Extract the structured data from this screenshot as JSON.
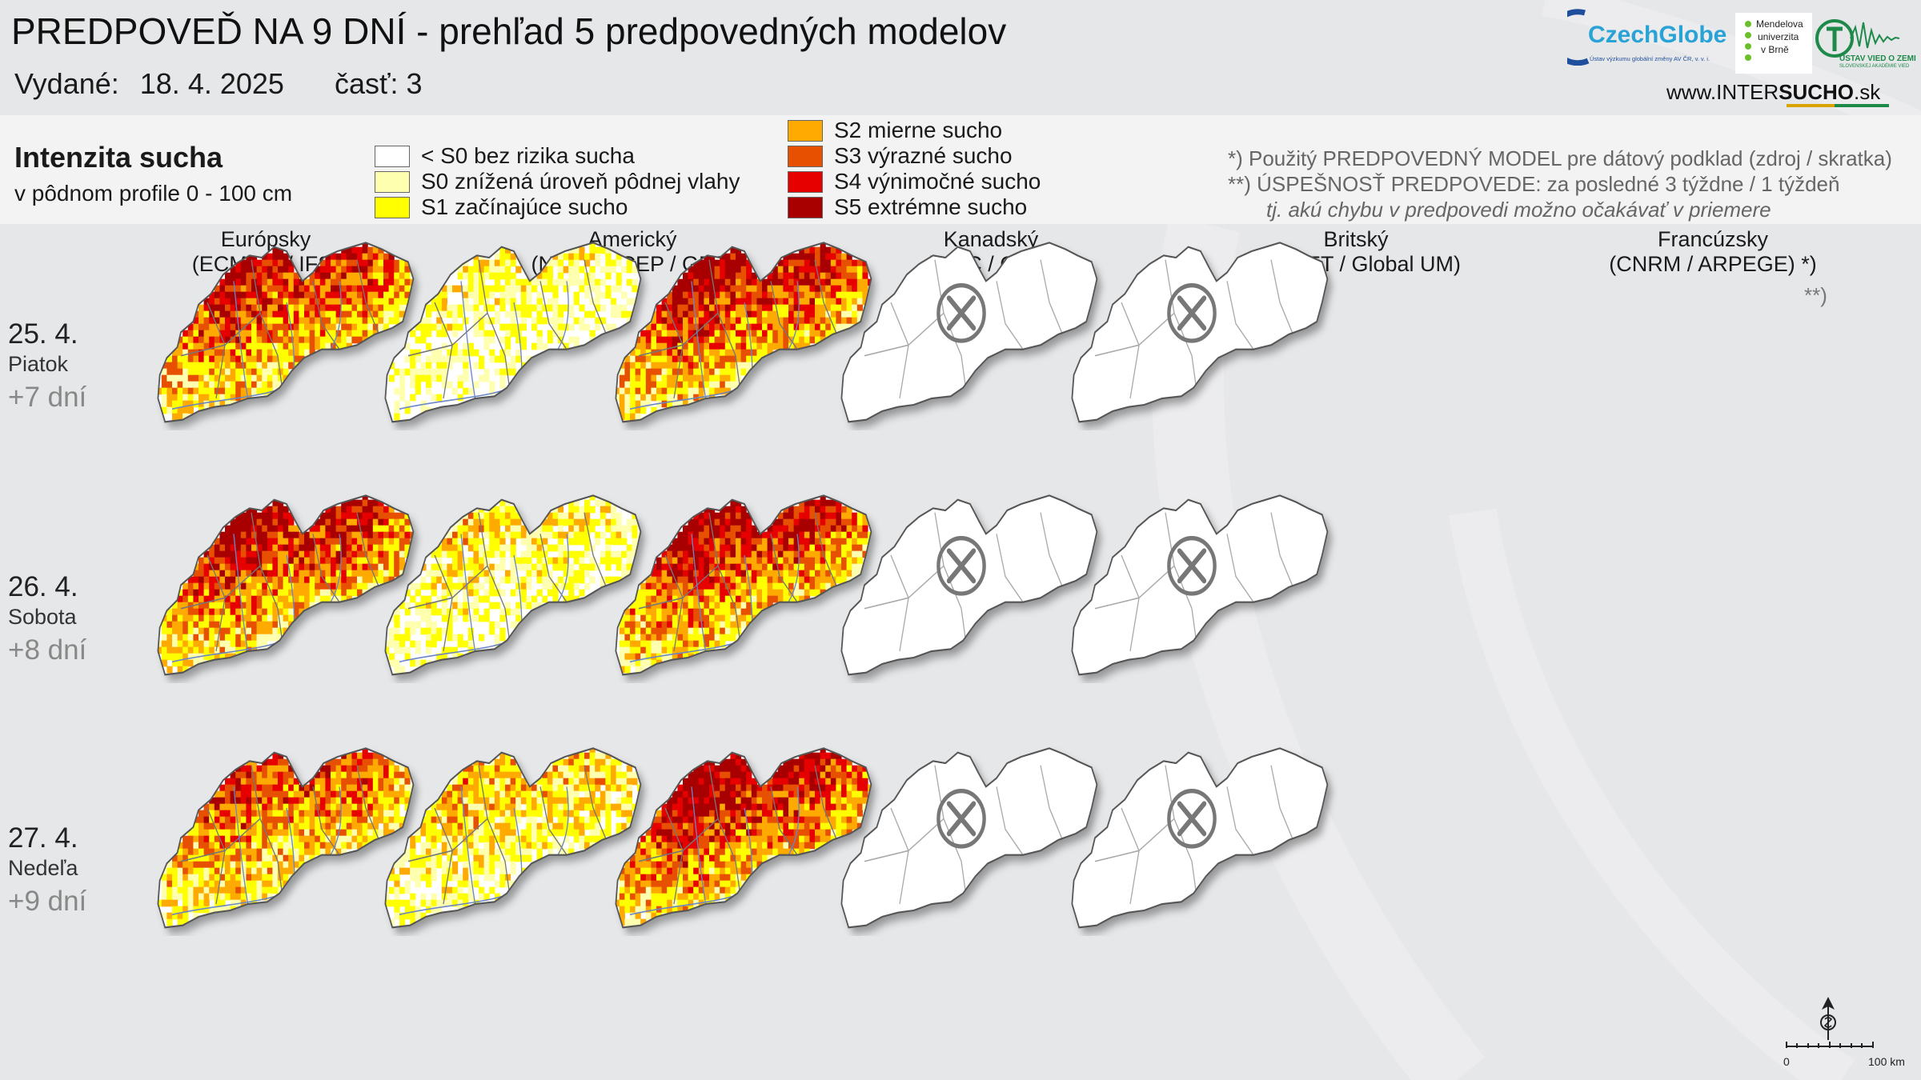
{
  "header": {
    "title": "PREDPOVEĎ NA 9 DNÍ - prehľad 5 predpovedných modelov",
    "issued_label": "Vydané:",
    "issued_date": "18. 4. 2025",
    "part": "časť: 3"
  },
  "logos": {
    "czechglobe": "CzechGlobe",
    "czechglobe_sub": "Ústav výzkumu globální změny AV ČR, v. v. i.",
    "mendelu_1": "Mendelova",
    "mendelu_2": "univerzita",
    "mendelu_3": "v Brně",
    "uvz_1": "ÚSTAV VIED O ZEMI",
    "uvz_2": "SLOVENSKEJ AKADÉMIE VIED",
    "website_pre": "www.INTER",
    "website_bold": "SUCHO",
    "website_post": ".sk"
  },
  "legend": {
    "title": "Intenzita sucha",
    "subtitle": "v pôdnom profile 0 - 100 cm",
    "items": [
      {
        "label": "< S0 bez rizika sucha",
        "color": "#ffffff"
      },
      {
        "label": "S0 znížená úroveň pôdnej vlahy",
        "color": "#ffffb0"
      },
      {
        "label": "S1 začínajúce sucho",
        "color": "#ffff00"
      },
      {
        "label": "S2 mierne sucho",
        "color": "#ffaa00"
      },
      {
        "label": "S3 výrazné sucho",
        "color": "#e65000"
      },
      {
        "label": "S4 výnimočné sucho",
        "color": "#e60000"
      },
      {
        "label": "S5 extrémne sucho",
        "color": "#a80000"
      }
    ]
  },
  "notes": {
    "line1": "*)   Použitý PREDPOVEDNÝ MODEL pre dátový podklad (zdroj / skratka)",
    "line2": "**) ÚSPEŠNOSŤ PREDPOVEDE: za posledné 3 týždne / 1 týždeň",
    "line3": "tj. akú chybu v predpovedi možno očakávať v priemere"
  },
  "models": [
    {
      "name": "Európsky",
      "code": "(ECMWF / IFS)",
      "available": true,
      "intensity": [
        0.85,
        0.9,
        0.75
      ]
    },
    {
      "name": "Americký",
      "code": "(NOAA NCEP / GFS)",
      "available": true,
      "intensity": [
        0.3,
        0.38,
        0.5
      ]
    },
    {
      "name": "Kanadský",
      "code": "(CMC / GEM)",
      "available": true,
      "intensity": [
        0.9,
        0.9,
        0.95
      ]
    },
    {
      "name": "Britský",
      "code": "(UKMET / Global UM)",
      "available": false
    },
    {
      "name": "Francúzsky",
      "code": "(CNRM / ARPEGE) *)",
      "available": false
    }
  ],
  "accuracy_mark": "**)",
  "rows": [
    {
      "date": "25. 4.",
      "weekday": "Piatok",
      "lead": "+7 dní"
    },
    {
      "date": "26. 4.",
      "weekday": "Sobota",
      "lead": "+8 dní"
    },
    {
      "date": "27. 4.",
      "weekday": "Nedeľa",
      "lead": "+9 dní"
    }
  ],
  "scale": {
    "min": "0",
    "max": "100 km"
  }
}
